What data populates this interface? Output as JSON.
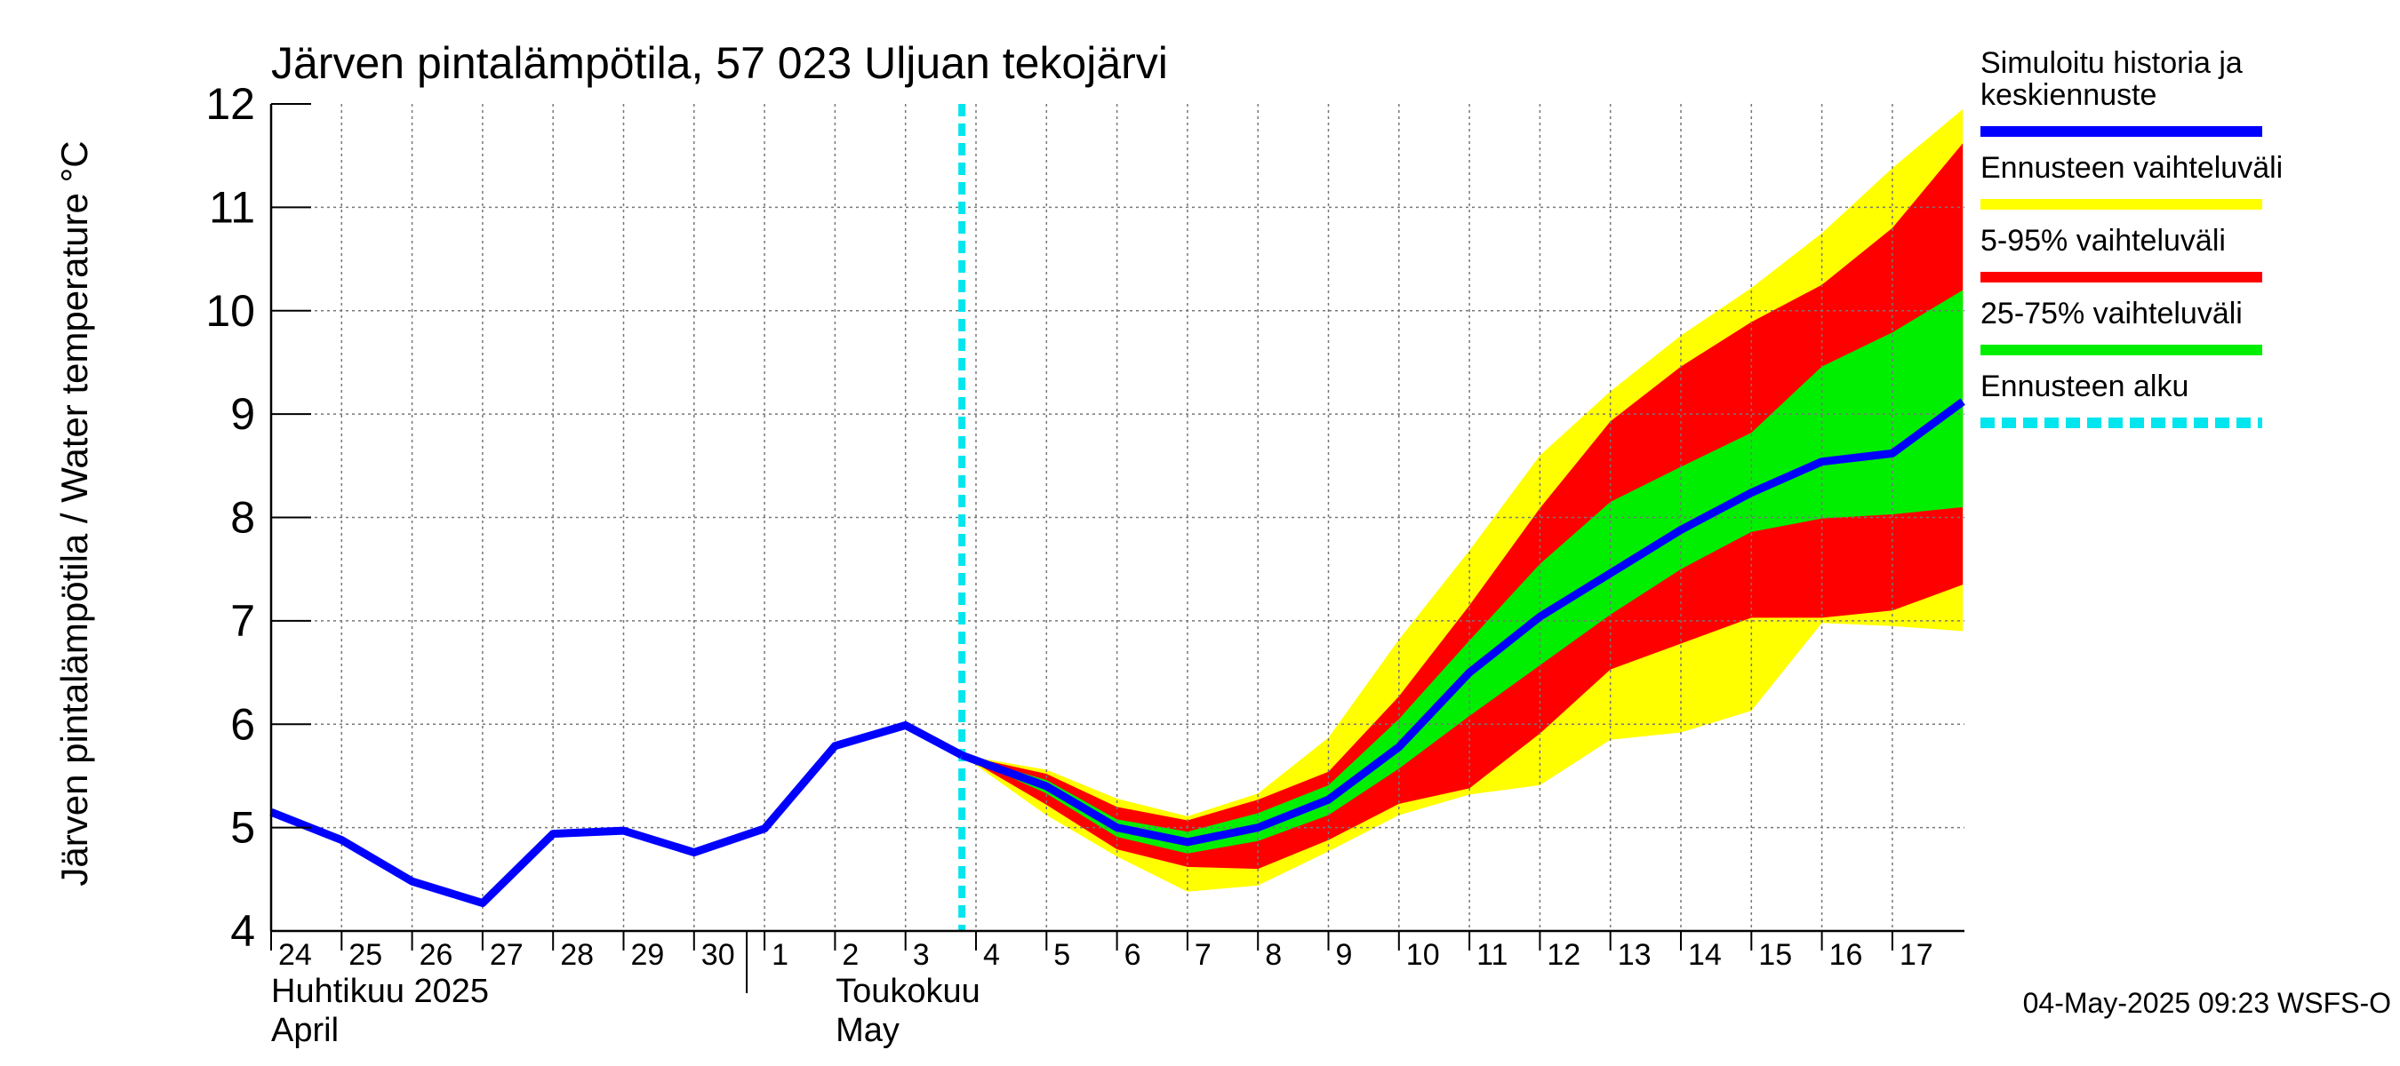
{
  "chart_data": {
    "type": "area",
    "title": "Järven pintalämpötila, 57 023 Uljuan tekojärvi",
    "ylabel": "Järven pintalämpötila / Water temperature °C",
    "xlabel": "",
    "ylim": [
      4,
      12
    ],
    "yticks": [
      4,
      5,
      6,
      7,
      8,
      9,
      10,
      11,
      12
    ],
    "grid": true,
    "x_day_labels": [
      "24",
      "25",
      "26",
      "27",
      "28",
      "29",
      "30",
      "1",
      "2",
      "3",
      "4",
      "5",
      "6",
      "7",
      "8",
      "9",
      "10",
      "11",
      "12",
      "13",
      "14",
      "15",
      "16",
      "17"
    ],
    "month_labels": [
      {
        "fi": "Huhtikuu  2025",
        "en": "April"
      },
      {
        "fi": "Toukokuu",
        "en": "May"
      }
    ],
    "forecast_start_day_index": 9.8,
    "history": {
      "x": [
        0,
        1,
        2,
        3,
        4,
        5,
        6,
        7,
        8,
        9,
        9.8
      ],
      "y": [
        5.15,
        4.88,
        4.48,
        4.27,
        4.94,
        4.97,
        4.76,
        4.99,
        5.79,
        5.99,
        5.7
      ]
    },
    "forecast": {
      "x": [
        9.8,
        11,
        12,
        13,
        14,
        15,
        16,
        17,
        18,
        19,
        20,
        21,
        22,
        23,
        24
      ],
      "median": [
        5.7,
        5.4,
        5.0,
        4.86,
        5.0,
        5.27,
        5.78,
        6.5,
        7.04,
        7.46,
        7.88,
        8.24,
        8.54,
        8.62,
        9.12
      ],
      "p25": [
        5.7,
        5.33,
        4.91,
        4.75,
        4.87,
        5.12,
        5.57,
        6.08,
        6.57,
        7.06,
        7.5,
        7.86,
        7.99,
        8.03,
        8.1
      ],
      "p75": [
        5.7,
        5.46,
        5.08,
        4.96,
        5.14,
        5.41,
        6.05,
        6.81,
        7.55,
        8.15,
        8.49,
        8.82,
        9.46,
        9.79,
        10.2
      ],
      "p5": [
        5.7,
        5.22,
        4.79,
        4.62,
        4.6,
        4.88,
        5.23,
        5.38,
        5.91,
        6.53,
        6.78,
        7.03,
        7.03,
        7.1,
        7.35
      ],
      "p95": [
        5.7,
        5.52,
        5.2,
        5.07,
        5.27,
        5.54,
        6.27,
        7.15,
        8.09,
        8.93,
        9.46,
        9.89,
        10.25,
        10.8,
        11.62
      ],
      "min": [
        5.7,
        5.12,
        4.72,
        4.38,
        4.44,
        4.77,
        5.12,
        5.32,
        5.41,
        5.85,
        5.92,
        6.13,
        6.98,
        6.95,
        6.9
      ],
      "max": [
        5.7,
        5.56,
        5.28,
        5.11,
        5.33,
        5.87,
        6.82,
        7.68,
        8.6,
        9.22,
        9.76,
        10.22,
        10.75,
        11.38,
        11.95
      ]
    },
    "legend": {
      "placement": "right",
      "items": [
        {
          "label": "Simuloitu historia ja keskiennuste",
          "lines": [
            "Simuloitu historia ja",
            "keskiennuste"
          ],
          "color": "#0000ff",
          "style": "solid"
        },
        {
          "label": "Ennusteen vaihteluväli",
          "lines": [
            "Ennusteen vaihteluväli"
          ],
          "color": "#ffff00",
          "style": "solid"
        },
        {
          "label": "5-95% vaihteluväli",
          "lines": [
            "5-95% vaihteluväli"
          ],
          "color": "#ff0000",
          "style": "solid"
        },
        {
          "label": "25-75% vaihteluväli",
          "lines": [
            "25-75% vaihteluväli"
          ],
          "color": "#00ee00",
          "style": "solid"
        },
        {
          "label": "Ennusteen alku",
          "lines": [
            "Ennusteen alku"
          ],
          "color": "#00e5ee",
          "style": "dashed"
        }
      ]
    },
    "timestamp": "04-May-2025 09:23 WSFS-O",
    "colors": {
      "history": "#0000ff",
      "range_full": "#ffff00",
      "range_5_95": "#ff0000",
      "range_25_75": "#00ee00",
      "forecast_start": "#00e5ee"
    }
  }
}
